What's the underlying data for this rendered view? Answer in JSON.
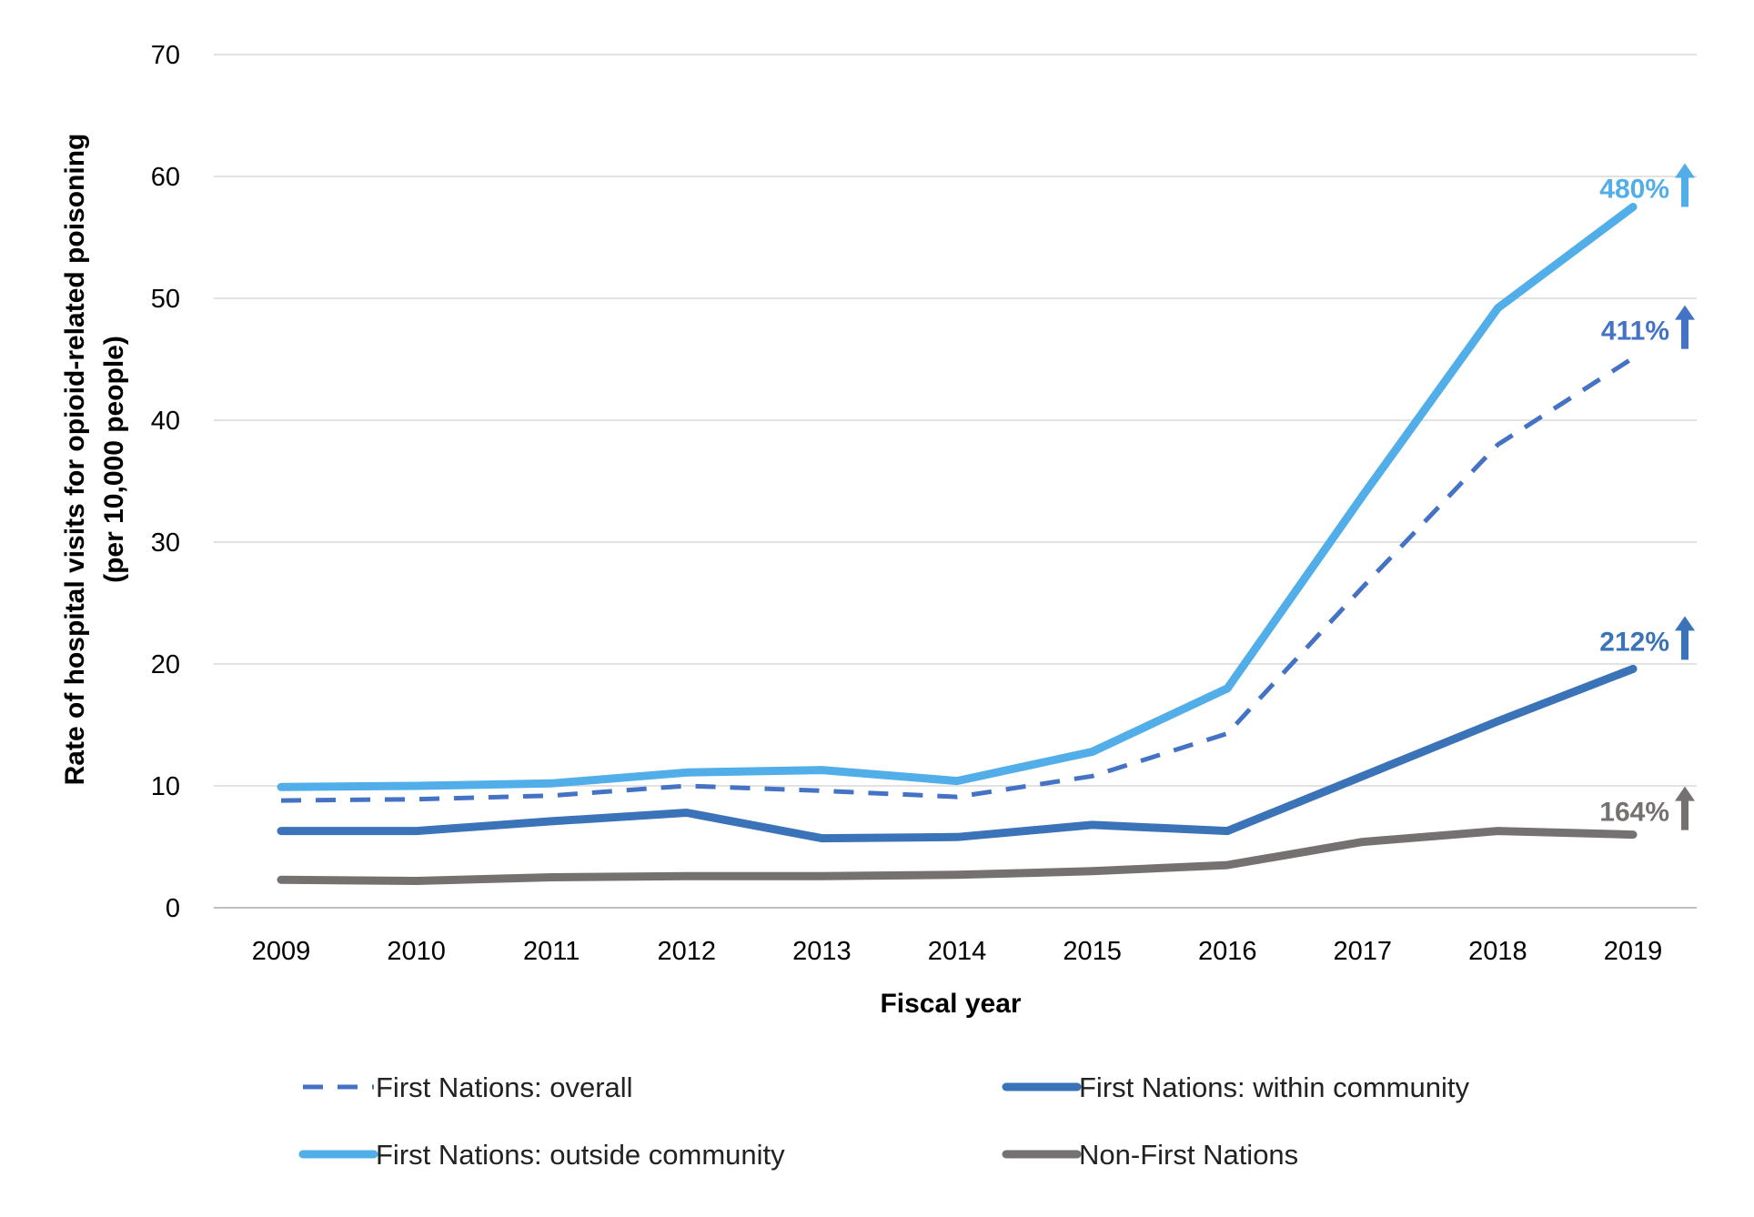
{
  "chart_data": {
    "type": "line",
    "title": "",
    "xlabel": "Fiscal year",
    "ylabel_line1": "Rate of hospital visits for opioid-related poisoning",
    "ylabel_line2": "(per 10,000 people)",
    "ylim": [
      0,
      70
    ],
    "yticks": [
      0,
      10,
      20,
      30,
      40,
      50,
      60,
      70
    ],
    "grid": true,
    "legend_position": "bottom",
    "categories": [
      "2009",
      "2010",
      "2011",
      "2012",
      "2013",
      "2014",
      "2015",
      "2016",
      "2017",
      "2018",
      "2019"
    ],
    "series": [
      {
        "name": "First Nations: overall",
        "color": "#4472C4",
        "style": "dashed",
        "values": [
          8.8,
          8.9,
          9.2,
          10.0,
          9.6,
          9.1,
          10.8,
          14.3,
          26.3,
          38.0,
          45.1
        ],
        "annotation": "411%"
      },
      {
        "name": "First Nations: within community",
        "color": "#3B73B9",
        "style": "solid",
        "values": [
          6.3,
          6.3,
          7.1,
          7.8,
          5.7,
          5.8,
          6.8,
          6.3,
          10.8,
          15.3,
          19.6
        ],
        "annotation": "212%"
      },
      {
        "name": "First Nations: outside community",
        "color": "#52AEE8",
        "style": "solid",
        "values": [
          9.9,
          10.0,
          10.2,
          11.1,
          11.3,
          10.4,
          12.8,
          18.0,
          33.8,
          49.2,
          57.5
        ],
        "annotation": "480%"
      },
      {
        "name": "Non-First Nations",
        "color": "#767171",
        "style": "solid",
        "values": [
          2.3,
          2.2,
          2.5,
          2.6,
          2.6,
          2.7,
          3.0,
          3.5,
          5.4,
          6.3,
          6.0
        ],
        "annotation": "164%"
      }
    ]
  }
}
